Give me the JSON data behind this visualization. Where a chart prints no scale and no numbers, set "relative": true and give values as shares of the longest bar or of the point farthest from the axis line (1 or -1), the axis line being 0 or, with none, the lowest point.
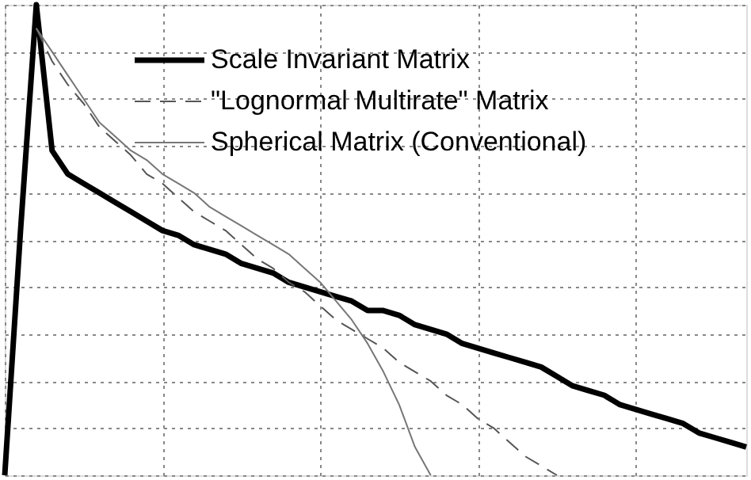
{
  "chart_data": {
    "type": "line",
    "relative": true,
    "grid": true,
    "legend": "top right",
    "categories": [
      null,
      null,
      null,
      null,
      null,
      null,
      null,
      null,
      null,
      null,
      null,
      null,
      null,
      null,
      null,
      null,
      null,
      null,
      null,
      null,
      null,
      null,
      null,
      null,
      null,
      null,
      null,
      null,
      null,
      null,
      null,
      null,
      null,
      null,
      null,
      null,
      null,
      null,
      null,
      null,
      null,
      null,
      null,
      null,
      null,
      null,
      null,
      null
    ],
    "series": [
      {
        "name": "Scale Invariant Matrix",
        "color": "#000000",
        "line_style": "solid",
        "values": [
          0,
          0.52,
          1,
          0.69,
          0.64,
          0.62,
          0.6,
          0.58,
          0.56,
          0.54,
          0.52,
          0.51,
          0.49,
          0.48,
          0.47,
          0.45,
          0.44,
          0.43,
          0.41,
          0.4,
          0.39,
          0.38,
          0.37,
          0.35,
          0.35,
          0.34,
          0.32,
          0.31,
          0.3,
          0.28,
          0.27,
          0.26,
          0.25,
          0.24,
          0.23,
          0.21,
          0.19,
          0.18,
          0.17,
          0.15,
          0.14,
          0.13,
          0.12,
          0.11,
          0.09,
          0.08,
          0.07,
          0.06
        ]
      },
      {
        "name": "\"Lognormal Multirate\" Matrix",
        "color": "#555555",
        "line_style": "dashed",
        "values": [
          null,
          null,
          0.95,
          0.88,
          0.83,
          0.79,
          0.74,
          0.71,
          0.68,
          0.64,
          0.62,
          0.59,
          0.56,
          0.54,
          0.52,
          0.49,
          0.46,
          0.44,
          0.41,
          0.39,
          0.36,
          0.33,
          0.31,
          0.29,
          0.27,
          0.24,
          0.22,
          0.2,
          0.17,
          0.15,
          0.12,
          0.1,
          0.07,
          0.04,
          0.02,
          0,
          null,
          null,
          null,
          null,
          null,
          null,
          null,
          null,
          null,
          null,
          null,
          null
        ]
      },
      {
        "name": "Spherical Matrix (Conventional)",
        "color": "#777777",
        "line_style": "solid",
        "values": [
          null,
          null,
          0.95,
          0.9,
          0.85,
          0.8,
          0.75,
          0.72,
          0.69,
          0.67,
          0.64,
          0.62,
          0.6,
          0.57,
          0.55,
          0.53,
          0.51,
          0.49,
          0.47,
          0.44,
          0.41,
          0.37,
          0.33,
          0.28,
          0.22,
          0.15,
          0.06,
          0,
          null,
          null,
          null,
          null,
          null,
          null,
          null,
          null,
          null,
          null,
          null,
          null,
          null,
          null,
          null,
          null,
          null,
          null,
          null,
          null
        ]
      }
    ]
  }
}
